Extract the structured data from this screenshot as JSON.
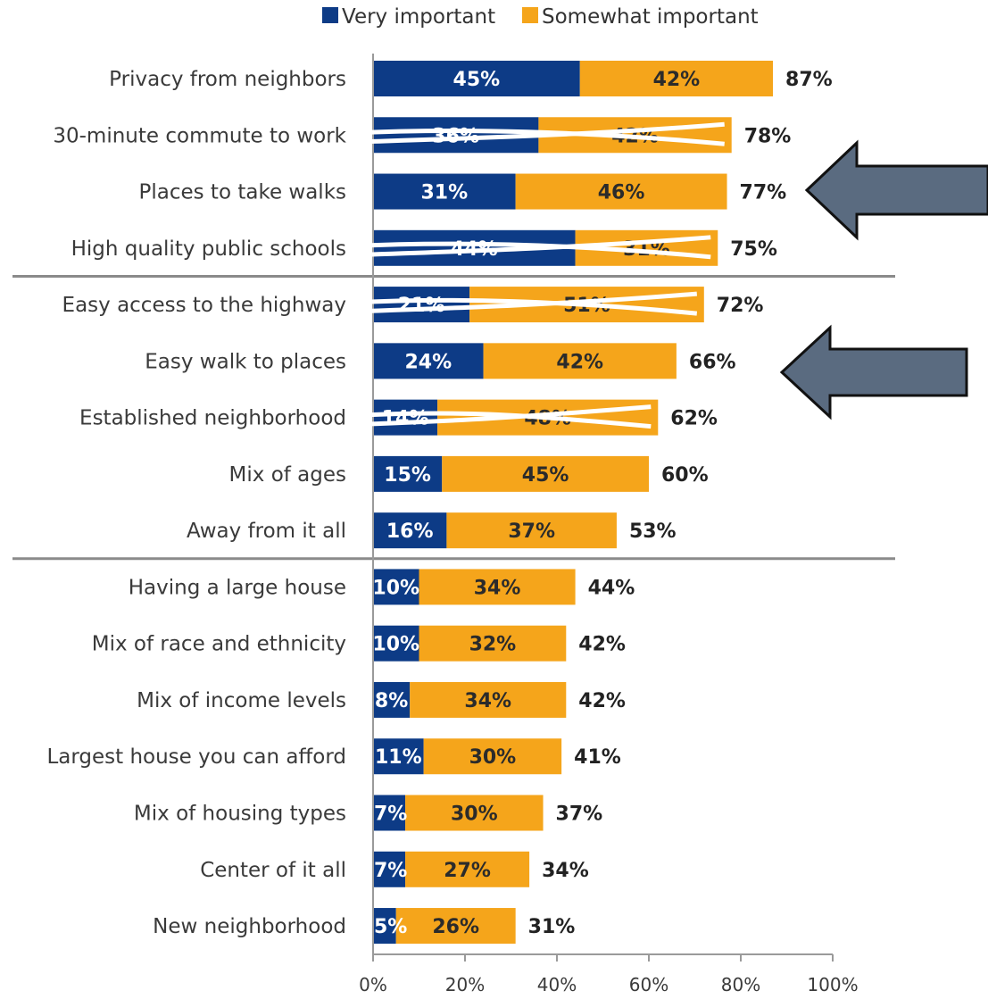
{
  "chart_data": {
    "type": "bar",
    "orientation": "horizontal",
    "stacked": true,
    "categories": [
      "Privacy from neighbors",
      "30-minute commute to work",
      "Places to take walks",
      "High quality public schools",
      "Easy access to the highway",
      "Easy walk to places",
      "Established neighborhood",
      "Mix of ages",
      "Away from it all",
      "Having a large house",
      "Mix of race and ethnicity",
      "Mix of income levels",
      "Largest house you can afford",
      "Mix of housing types",
      "Center of it all",
      "New neighborhood"
    ],
    "series": [
      {
        "name": "Very important",
        "color": "#0d3b86",
        "values": [
          45,
          36,
          31,
          44,
          21,
          24,
          14,
          15,
          16,
          10,
          10,
          8,
          11,
          7,
          7,
          5
        ]
      },
      {
        "name": "Somewhat important",
        "color": "#f5a51b",
        "values": [
          42,
          42,
          46,
          31,
          51,
          42,
          48,
          45,
          37,
          34,
          32,
          34,
          30,
          30,
          27,
          26
        ]
      }
    ],
    "totals": [
      87,
      78,
      77,
      75,
      72,
      66,
      62,
      60,
      53,
      44,
      42,
      42,
      41,
      37,
      34,
      31
    ],
    "x_ticks": [
      "0%",
      "20%",
      "40%",
      "60%",
      "80%",
      "100%"
    ],
    "xlim": [
      0,
      100
    ],
    "group_separators_after": [
      3,
      8
    ],
    "legend_position": "top",
    "annotations": [
      {
        "type": "arrow",
        "points_to": "Places to take walks",
        "color": "#5a6b80"
      },
      {
        "type": "arrow",
        "points_to": "Easy walk to places",
        "color": "#5a6b80"
      }
    ]
  }
}
